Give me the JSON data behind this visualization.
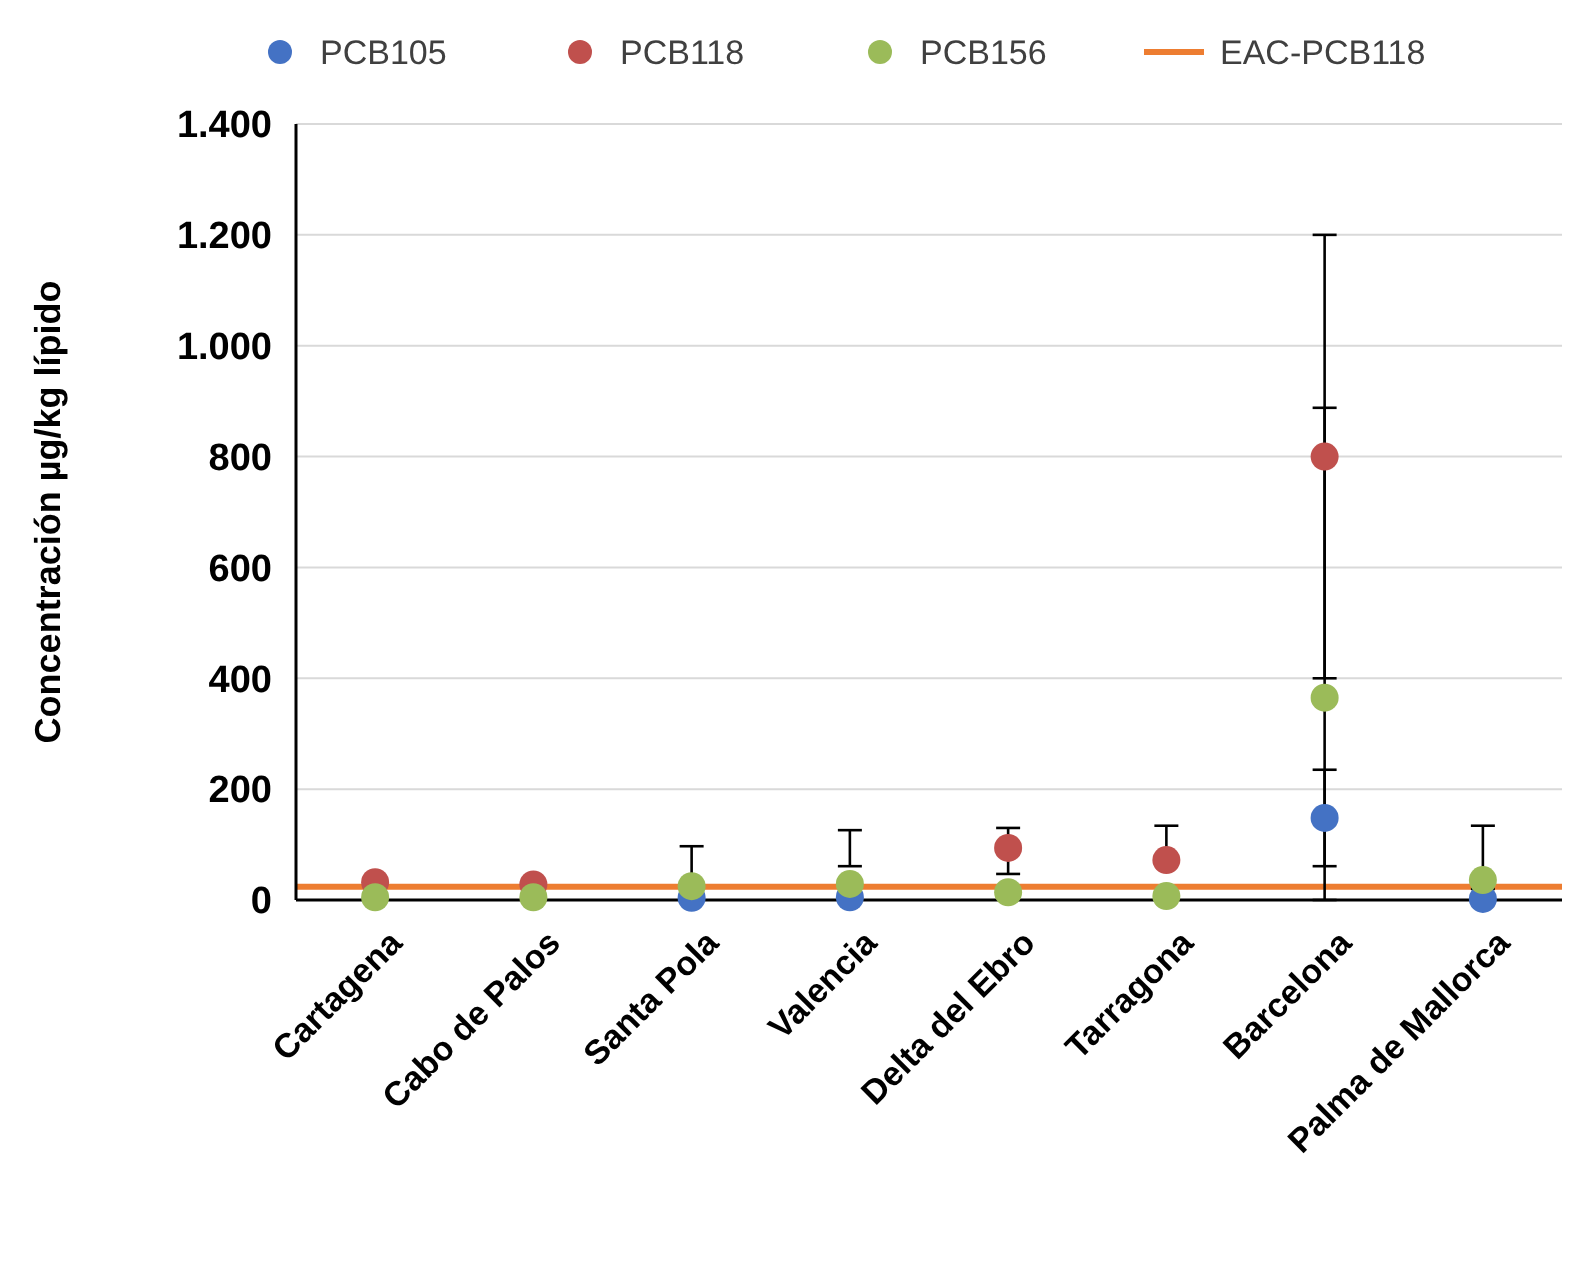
{
  "chart_data": {
    "type": "scatter",
    "ylabel": "Concentración µg/kg lípido",
    "categories": [
      "Cartagena",
      "Cabo de Palos",
      "Santa Pola",
      "Valencia",
      "Delta del Ebro",
      "Tarragona",
      "Barcelona",
      "Palma de Mallorca"
    ],
    "series": [
      {
        "name": "PCB105",
        "color": "#4472c4",
        "values": [
          null,
          null,
          4,
          5,
          null,
          null,
          148,
          2
        ],
        "errors": [
          null,
          null,
          null,
          null,
          null,
          null,
          [
            61,
            235
          ],
          null
        ]
      },
      {
        "name": "PCB118",
        "color": "#c0504d",
        "values": [
          32,
          28,
          null,
          null,
          94,
          72,
          800,
          null
        ],
        "errors": [
          null,
          null,
          null,
          null,
          [
            47,
            130
          ],
          [
            72,
            134
          ],
          [
            400,
            1200
          ],
          null
        ]
      },
      {
        "name": "PCB156",
        "color": "#9bbb59",
        "values": [
          5,
          5,
          25,
          29,
          14,
          7,
          365,
          36
        ],
        "errors": [
          null,
          null,
          [
            20,
            97
          ],
          [
            61,
            126
          ],
          null,
          null,
          [
            0,
            888
          ],
          [
            20,
            134
          ]
        ]
      }
    ],
    "ref_lines": [
      {
        "axis": "y",
        "value": 24,
        "label": "EAC-PCB118",
        "color": "#ed7d31"
      }
    ],
    "ylim": [
      0,
      1400
    ],
    "yticks": [
      {
        "value": 0,
        "label": "0"
      },
      {
        "value": 200,
        "label": "200"
      },
      {
        "value": 400,
        "label": "400"
      },
      {
        "value": 600,
        "label": "600"
      },
      {
        "value": 800,
        "label": "800"
      },
      {
        "value": 1000,
        "label": "1.000"
      },
      {
        "value": 1200,
        "label": "1.200"
      },
      {
        "value": 1400,
        "label": "1.400"
      }
    ],
    "grid": "y",
    "legend": "top",
    "marker": "circle"
  }
}
